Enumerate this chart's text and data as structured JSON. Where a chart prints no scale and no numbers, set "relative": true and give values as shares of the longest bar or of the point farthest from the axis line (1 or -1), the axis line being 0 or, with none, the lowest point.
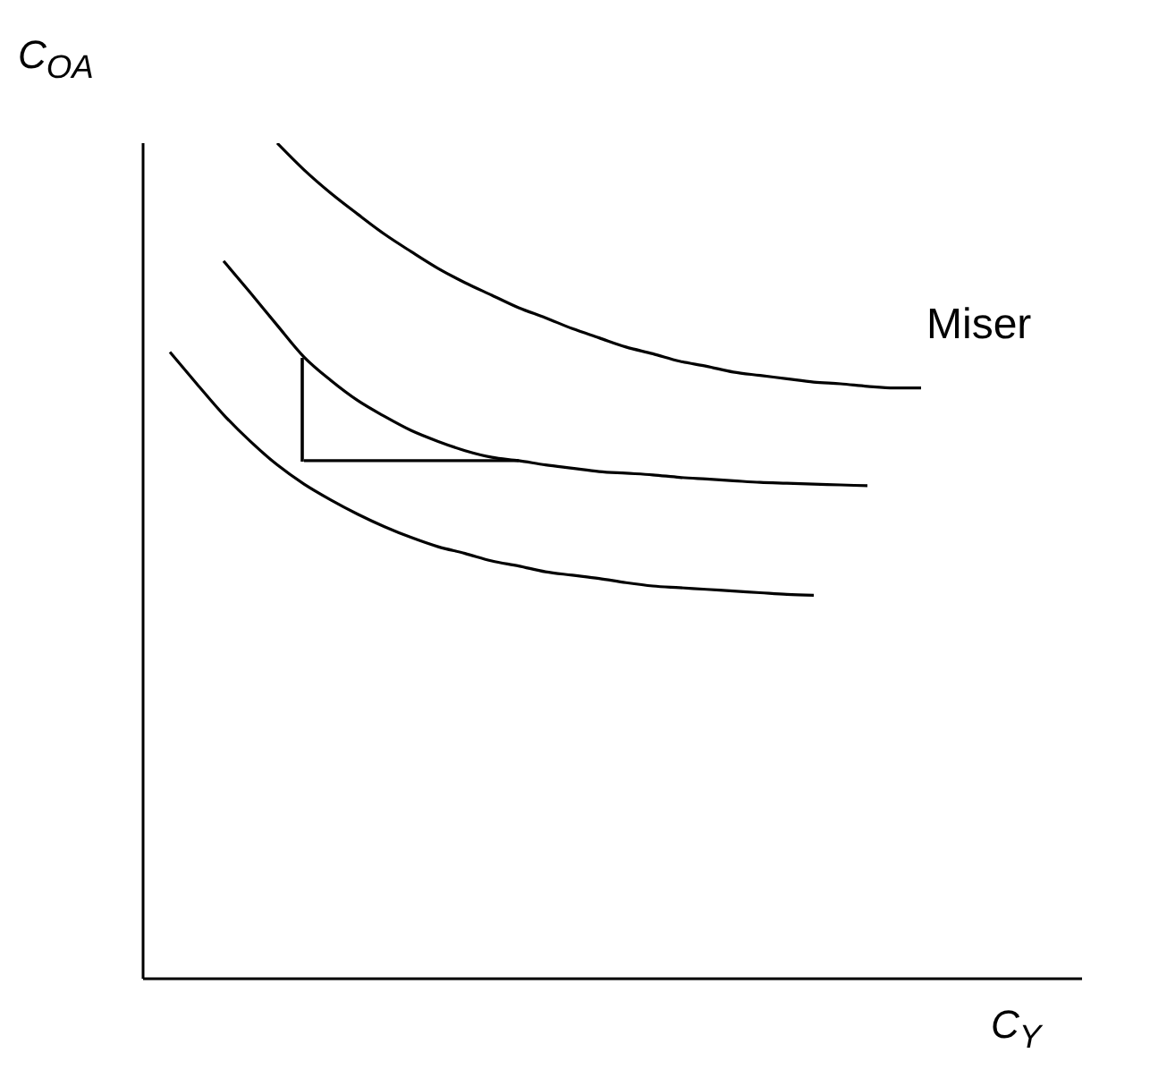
{
  "chart_data": {
    "type": "line",
    "relative": true,
    "xlabel": "C$_{Y}$",
    "ylabel": "C$_{OA}$",
    "annotations": [
      "Miser"
    ],
    "categories": [
      null,
      null,
      null,
      null,
      null,
      null,
      null,
      null,
      null,
      null,
      null,
      null,
      null,
      null,
      null,
      null,
      null,
      null,
      null,
      null,
      null,
      null,
      null,
      null,
      null,
      null,
      null,
      null,
      null,
      null,
      null,
      null,
      null,
      null,
      null,
      null
    ],
    "series": [
      {
        "color": "#000000",
        "values": [
          null,
          null,
          null,
          null,
          null,
          1.0,
          0.968,
          0.94,
          0.915,
          0.891,
          0.87,
          0.85,
          0.833,
          0.818,
          0.803,
          0.791,
          0.778,
          0.767,
          0.756,
          0.748,
          0.739,
          0.733,
          0.726,
          0.722,
          0.718,
          0.714,
          0.712,
          0.709,
          0.707,
          0.707,
          null,
          null,
          null,
          null,
          null,
          null
        ]
      },
      {
        "color": "#000000",
        "values": [
          null,
          null,
          null,
          0.859,
          0.821,
          0.782,
          0.744,
          0.716,
          0.692,
          0.673,
          0.656,
          0.643,
          0.632,
          0.624,
          0.62,
          0.615,
          0.611,
          0.607,
          0.605,
          0.603,
          0.6,
          0.598,
          0.596,
          0.594,
          0.593,
          0.592,
          0.591,
          0.59,
          null,
          null,
          null,
          null,
          null,
          null,
          null,
          null
        ]
      },
      {
        "color": "#000000",
        "values": [
          null,
          0.75,
          0.712,
          0.675,
          0.643,
          0.615,
          0.592,
          0.573,
          0.556,
          0.541,
          0.528,
          0.517,
          0.509,
          0.5,
          0.494,
          0.487,
          0.483,
          0.479,
          0.474,
          0.47,
          0.468,
          0.466,
          0.464,
          0.462,
          0.46,
          0.459,
          null,
          null,
          null,
          null,
          null,
          null,
          null,
          null,
          null,
          null
        ]
      },
      {
        "color": "#000000",
        "values": [
          null,
          null,
          null,
          null,
          null,
          null,
          0.62,
          0.62,
          0.62,
          0.62,
          0.62,
          0.62,
          0.62,
          0.62,
          0.62,
          null,
          null,
          null,
          null,
          null,
          null,
          null,
          null,
          null,
          null,
          null,
          null,
          null,
          null,
          null,
          null,
          null,
          null,
          null,
          null,
          null
        ]
      }
    ],
    "marker": "none",
    "line_style": "solid"
  }
}
